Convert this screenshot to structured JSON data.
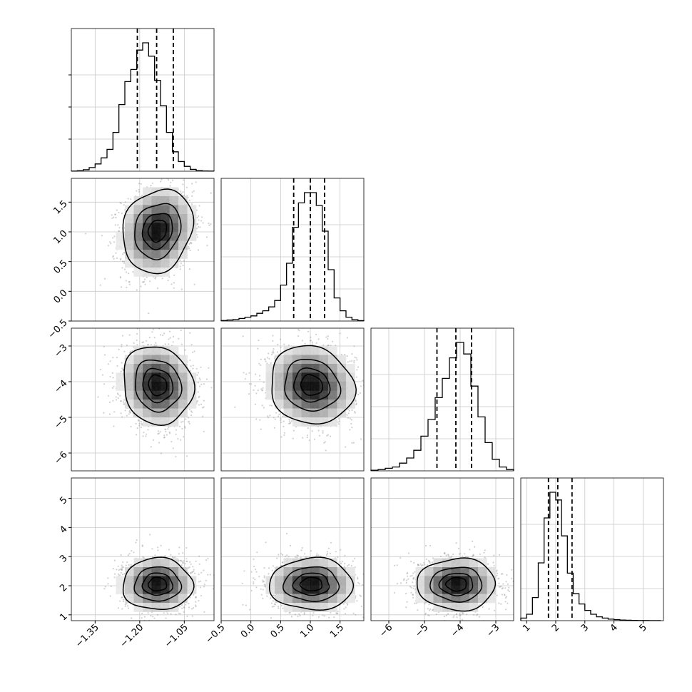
{
  "figure": {
    "type": "corner",
    "parameters": 4,
    "colors": {
      "line": "#000000",
      "grid": "#c8c8c8",
      "scatter": "#9a9a9a",
      "background": "#ffffff"
    }
  },
  "axes": [
    {
      "range": [
        -1.43,
        -0.95
      ],
      "ticks": [
        -1.35,
        -1.2,
        -1.05
      ],
      "tick_labels": [
        "−1.35",
        "−1.20",
        "−1.05"
      ]
    },
    {
      "range": [
        -0.5,
        1.9
      ],
      "ticks": [
        -0.5,
        0.0,
        0.5,
        1.0,
        1.5
      ],
      "tick_labels": [
        "−0.5",
        "0.0",
        "0.5",
        "1.0",
        "1.5"
      ]
    },
    {
      "range": [
        -6.5,
        -2.5
      ],
      "ticks": [
        -6,
        -5,
        -4,
        -3
      ],
      "tick_labels": [
        "−6",
        "−5",
        "−4",
        "−3"
      ]
    },
    {
      "range": [
        0.8,
        5.7
      ],
      "ticks": [
        1,
        2,
        3,
        4,
        5
      ],
      "tick_labels": [
        "1",
        "2",
        "3",
        "4",
        "5"
      ]
    }
  ],
  "chart_data": {
    "type": "corner",
    "grid": true,
    "parameters": [
      {
        "mean": -1.15,
        "sd": 0.055,
        "quantiles": [
          -1.208,
          -1.143,
          -1.087
        ]
      },
      {
        "mean": 1.02,
        "sd": 0.33,
        "quantiles": [
          0.72,
          1.0,
          1.24
        ]
      },
      {
        "mean": -4.1,
        "sd": 0.53,
        "quantiles": [
          -4.65,
          -4.12,
          -3.68
        ]
      },
      {
        "mean": 2.15,
        "sd": 0.42,
        "quantiles": [
          1.75,
          2.07,
          2.56
        ]
      }
    ],
    "histograms": [
      {
        "edges": [
          -1.43,
          -1.41,
          -1.39,
          -1.37,
          -1.35,
          -1.33,
          -1.31,
          -1.29,
          -1.27,
          -1.25,
          -1.23,
          -1.21,
          -1.19,
          -1.17,
          -1.15,
          -1.13,
          -1.11,
          -1.09,
          -1.07,
          -1.05,
          -1.03,
          -1.01,
          -0.99,
          -0.97,
          -0.95
        ],
        "counts": [
          0.1,
          0.4,
          1.2,
          3,
          6,
          11,
          18,
          32,
          55,
          74,
          84,
          100,
          106,
          95,
          75,
          54,
          32,
          16,
          8,
          4,
          1.5,
          0.5,
          0.2,
          0.1
        ]
      },
      {
        "edges": [
          -0.5,
          -0.4,
          -0.3,
          -0.2,
          -0.1,
          0.0,
          0.1,
          0.2,
          0.3,
          0.4,
          0.5,
          0.6,
          0.7,
          0.8,
          0.9,
          1.0,
          1.1,
          1.2,
          1.3,
          1.4,
          1.5,
          1.6,
          1.7,
          1.8,
          1.9
        ],
        "counts": [
          0.4,
          0.8,
          1.2,
          2,
          3,
          4,
          6,
          8,
          11,
          16,
          28,
          45,
          73,
          92,
          100,
          100,
          90,
          70,
          40,
          18,
          8,
          3,
          1,
          0.3
        ]
      },
      {
        "edges": [
          -6.5,
          -6.3,
          -6.1,
          -5.9,
          -5.7,
          -5.5,
          -5.3,
          -5.1,
          -4.9,
          -4.7,
          -4.5,
          -4.3,
          -4.1,
          -3.9,
          -3.7,
          -3.5,
          -3.3,
          -3.1,
          -2.9,
          -2.7,
          -2.5
        ],
        "counts": [
          0.5,
          1,
          2,
          3,
          6,
          10,
          16,
          27,
          40,
          57,
          72,
          88,
          100,
          91,
          66,
          42,
          22,
          9,
          3,
          1
        ]
      },
      {
        "edges": [
          0.8,
          1.0,
          1.2,
          1.4,
          1.6,
          1.8,
          2.0,
          2.2,
          2.4,
          2.6,
          2.8,
          3.0,
          3.2,
          3.4,
          3.6,
          3.8,
          4.0,
          4.2,
          4.4,
          4.6,
          4.8,
          5.0,
          5.2,
          5.4,
          5.6
        ],
        "counts": [
          2,
          5,
          18,
          45,
          80,
          100,
          94,
          66,
          37,
          21,
          13,
          8,
          5,
          3,
          2,
          1.2,
          0.8,
          0.5,
          0.3,
          0.2,
          0.1,
          0.1,
          0.05,
          0.05
        ]
      }
    ],
    "pairs": [
      {
        "x": 0,
        "y": 1,
        "center": [
          -1.14,
          1.02
        ],
        "sd": [
          0.057,
          0.34
        ],
        "rho": 0.15
      },
      {
        "x": 0,
        "y": 2,
        "center": [
          -1.14,
          -4.1
        ],
        "sd": [
          0.057,
          0.53
        ],
        "rho": -0.1
      },
      {
        "x": 1,
        "y": 2,
        "center": [
          1.02,
          -4.1
        ],
        "sd": [
          0.34,
          0.53
        ],
        "rho": -0.1
      },
      {
        "x": 0,
        "y": 3,
        "center": [
          -1.14,
          2.05
        ],
        "sd": [
          0.057,
          0.43
        ],
        "rho": 0.0
      },
      {
        "x": 1,
        "y": 3,
        "center": [
          1.02,
          2.05
        ],
        "sd": [
          0.34,
          0.43
        ],
        "rho": 0.0
      },
      {
        "x": 2,
        "y": 3,
        "center": [
          -4.1,
          2.05
        ],
        "sd": [
          0.53,
          0.43
        ],
        "rho": 0.0
      }
    ],
    "contour_levels_sigma": [
      0.5,
      1.0,
      1.5,
      2.0
    ]
  }
}
